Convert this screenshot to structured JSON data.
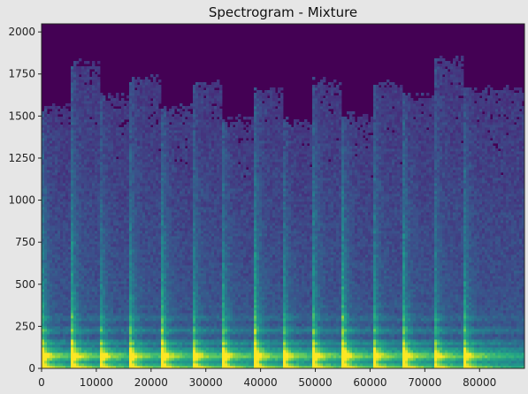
{
  "chart_data": {
    "type": "heatmap",
    "title": "Spectrogram - Mixture",
    "xlabel": "",
    "ylabel": "",
    "xlim": [
      0,
      88200
    ],
    "ylim": [
      0,
      2048
    ],
    "x_ticks": [
      0,
      10000,
      20000,
      30000,
      40000,
      50000,
      60000,
      70000,
      80000
    ],
    "y_ticks": [
      0,
      250,
      500,
      750,
      1000,
      1250,
      1500,
      1750,
      2000
    ],
    "x_tick_labels": [
      "0",
      "10000",
      "20000",
      "30000",
      "40000",
      "50000",
      "60000",
      "70000",
      "80000"
    ],
    "y_tick_labels": [
      "0",
      "250",
      "500",
      "750",
      "1000",
      "1250",
      "1500",
      "1750",
      "2000"
    ],
    "colormap": "viridis",
    "background_color": "#440154",
    "note_onsets": [
      0,
      5500,
      10500,
      16000,
      22000,
      27500,
      33000,
      39000,
      44000,
      49500,
      55000,
      60500,
      66000,
      71500,
      77000
    ],
    "energy_ceiling_segments": [
      {
        "x0": 0,
        "x1": 5500,
        "top": 1560
      },
      {
        "x0": 5500,
        "x1": 10500,
        "top": 1820
      },
      {
        "x0": 10500,
        "x1": 16000,
        "top": 1620
      },
      {
        "x0": 16000,
        "x1": 22000,
        "top": 1720
      },
      {
        "x0": 22000,
        "x1": 27500,
        "top": 1550
      },
      {
        "x0": 27500,
        "x1": 33000,
        "top": 1700
      },
      {
        "x0": 33000,
        "x1": 39000,
        "top": 1480
      },
      {
        "x0": 39000,
        "x1": 44000,
        "top": 1650
      },
      {
        "x0": 44000,
        "x1": 49500,
        "top": 1460
      },
      {
        "x0": 49500,
        "x1": 55000,
        "top": 1700
      },
      {
        "x0": 55000,
        "x1": 60500,
        "top": 1500
      },
      {
        "x0": 60500,
        "x1": 66000,
        "top": 1700
      },
      {
        "x0": 66000,
        "x1": 71500,
        "top": 1620
      },
      {
        "x0": 71500,
        "x1": 77000,
        "top": 1830
      },
      {
        "x0": 77000,
        "x1": 88200,
        "top": 1660
      }
    ]
  }
}
